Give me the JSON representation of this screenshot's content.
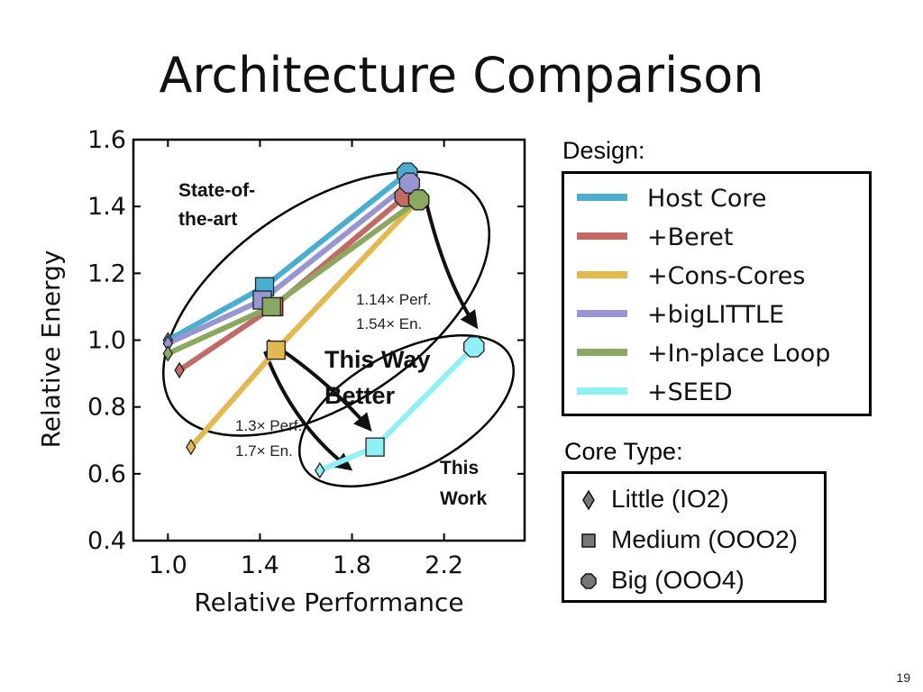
{
  "slide": {
    "title": "Architecture Comparison",
    "page_number": "19"
  },
  "chart_data": {
    "type": "line",
    "xlabel": "Relative Performance",
    "ylabel": "Relative Energy",
    "xlim": [
      0.85,
      2.55
    ],
    "ylim": [
      0.4,
      1.6
    ],
    "xticks": [
      "1.0",
      "1.4",
      "1.8",
      "2.2"
    ],
    "xtick_values": [
      1.0,
      1.4,
      1.8,
      2.2
    ],
    "yticks": [
      "0.4",
      "0.6",
      "0.8",
      "1.0",
      "1.2",
      "1.4",
      "1.6"
    ],
    "ytick_values": [
      0.4,
      0.6,
      0.8,
      1.0,
      1.2,
      1.4,
      1.6
    ],
    "grid": false,
    "series": [
      {
        "name": "Host Core",
        "color": "#4aaed0",
        "points": [
          {
            "x": 1.0,
            "y": 1.0,
            "core": "little"
          },
          {
            "x": 1.42,
            "y": 1.16,
            "core": "medium"
          },
          {
            "x": 2.04,
            "y": 1.5,
            "core": "big"
          }
        ]
      },
      {
        "name": "+Beret",
        "color": "#c26a63",
        "points": [
          {
            "x": 1.05,
            "y": 0.91,
            "core": "little"
          },
          {
            "x": 1.46,
            "y": 1.1,
            "core": "medium"
          },
          {
            "x": 2.03,
            "y": 1.43,
            "core": "big"
          }
        ]
      },
      {
        "name": "+Cons-Cores",
        "color": "#e3b84c",
        "points": [
          {
            "x": 1.1,
            "y": 0.68,
            "core": "little"
          },
          {
            "x": 1.47,
            "y": 0.97,
            "core": "medium"
          },
          {
            "x": 2.09,
            "y": 1.42,
            "core": "big"
          }
        ]
      },
      {
        "name": "+bigLITTLE",
        "color": "#9896d0",
        "points": [
          {
            "x": 1.0,
            "y": 0.99,
            "core": "little"
          },
          {
            "x": 1.41,
            "y": 1.12,
            "core": "medium"
          },
          {
            "x": 2.05,
            "y": 1.47,
            "core": "big"
          }
        ]
      },
      {
        "name": "+In-place Loop",
        "color": "#8aa860",
        "points": [
          {
            "x": 1.0,
            "y": 0.96,
            "core": "little"
          },
          {
            "x": 1.45,
            "y": 1.1,
            "core": "medium"
          },
          {
            "x": 2.09,
            "y": 1.42,
            "core": "big"
          }
        ]
      },
      {
        "name": "+SEED",
        "color": "#8ff1f6",
        "points": [
          {
            "x": 1.66,
            "y": 0.61,
            "core": "little"
          },
          {
            "x": 1.9,
            "y": 0.68,
            "core": "medium"
          },
          {
            "x": 2.33,
            "y": 0.98,
            "core": "big"
          }
        ]
      }
    ],
    "annotations": {
      "state_of_art": [
        "State-of-",
        "the-art"
      ],
      "this_work": [
        "This",
        "Work"
      ],
      "this_way_better": [
        "This Way",
        "Better"
      ],
      "gain_upper": [
        "1.14× Perf.",
        "1.54× En."
      ],
      "gain_lower": [
        "1.3× Perf.",
        "1.7× En."
      ]
    }
  },
  "legend": {
    "design_title": "Design:",
    "core_type_title": "Core Type:",
    "core_types": [
      {
        "label": "Little (IO2)",
        "icon": "diamond-icon"
      },
      {
        "label": "Medium (OOO2)",
        "icon": "square-icon"
      },
      {
        "label": "Big (OOO4)",
        "icon": "octagon-icon"
      }
    ]
  }
}
